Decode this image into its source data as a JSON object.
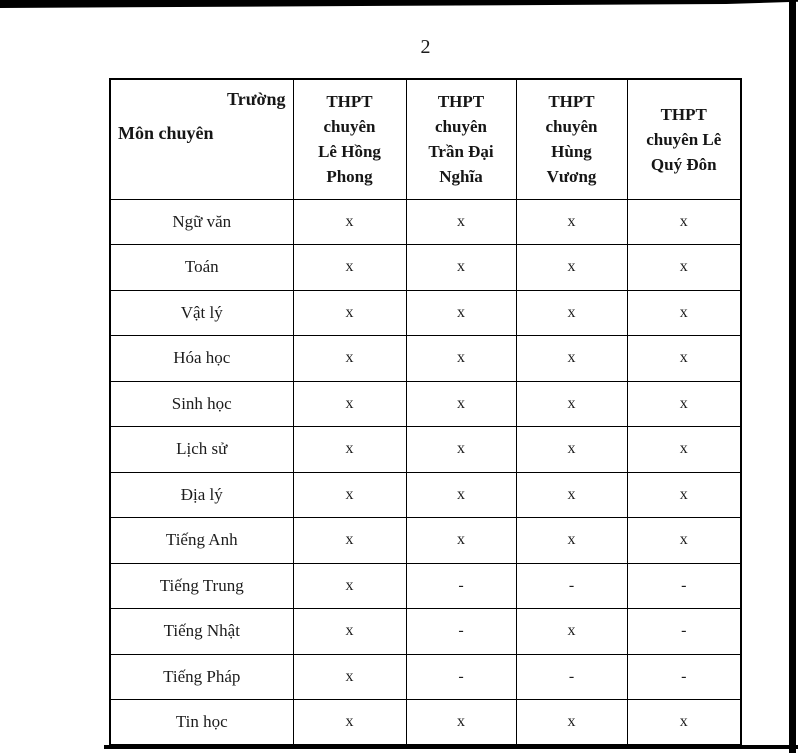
{
  "page_number": "2",
  "table": {
    "corner": {
      "school_label": "Trường",
      "subject_label": "Môn chuyên"
    },
    "school_columns": [
      "THPT\nchuyên\nLê Hồng\nPhong",
      "THPT\nchuyên\nTrần Đại\nNghĩa",
      "THPT\nchuyên\nHùng\nVương",
      "THPT\nchuyên Lê\nQuý Đôn"
    ],
    "rows": [
      {
        "label": "Ngữ văn",
        "values": [
          "x",
          "x",
          "x",
          "x"
        ]
      },
      {
        "label": "Toán",
        "values": [
          "x",
          "x",
          "x",
          "x"
        ]
      },
      {
        "label": "Vật lý",
        "values": [
          "x",
          "x",
          "x",
          "x"
        ]
      },
      {
        "label": "Hóa học",
        "values": [
          "x",
          "x",
          "x",
          "x"
        ]
      },
      {
        "label": "Sinh học",
        "values": [
          "x",
          "x",
          "x",
          "x"
        ]
      },
      {
        "label": "Lịch sử",
        "values": [
          "x",
          "x",
          "x",
          "x"
        ]
      },
      {
        "label": "Địa lý",
        "values": [
          "x",
          "x",
          "x",
          "x"
        ]
      },
      {
        "label": "Tiếng Anh",
        "values": [
          "x",
          "x",
          "x",
          "x"
        ]
      },
      {
        "label": "Tiếng Trung",
        "values": [
          "x",
          "-",
          "-",
          "-"
        ]
      },
      {
        "label": "Tiếng Nhật",
        "values": [
          "x",
          "-",
          "x",
          "-"
        ]
      },
      {
        "label": "Tiếng Pháp",
        "values": [
          "x",
          "-",
          "-",
          "-"
        ]
      },
      {
        "label": "Tin học",
        "values": [
          "x",
          "x",
          "x",
          "x"
        ]
      }
    ]
  },
  "colors": {
    "paper": "#ffffff",
    "ink": "#111111",
    "scan_edge": "#000000"
  }
}
